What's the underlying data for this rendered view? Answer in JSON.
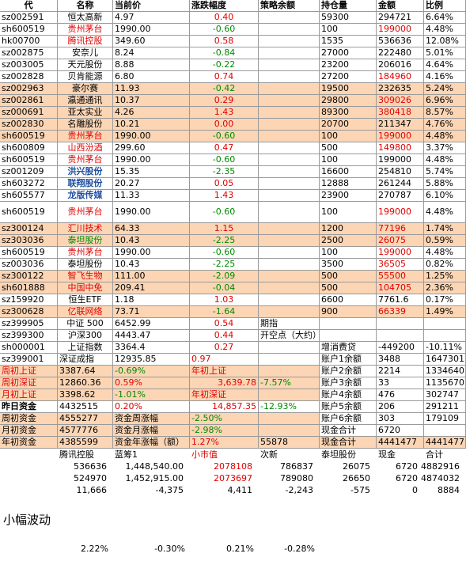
{
  "header": [
    "代",
    "名称",
    "当前价",
    "涨跌幅度",
    "策略余额",
    "持仓量",
    "金额",
    "比例"
  ],
  "rows": [
    [
      "sz002591",
      "恒太高新",
      "4.97",
      "0.40",
      null,
      "59300",
      "294721",
      "6.64%"
    ],
    [
      "sh600519",
      "贵州茅台",
      "1990.00",
      "-0.60",
      null,
      "100",
      "199000",
      "4.48%"
    ],
    [
      "hk00700",
      "腾讯控股",
      "349.60",
      "0.58",
      null,
      "1535",
      "536636",
      "12.08%"
    ],
    [
      "sz002875",
      "安奈儿",
      "8.24",
      "-0.84",
      null,
      "27000",
      "222480",
      "5.01%"
    ],
    [
      "sz003005",
      "天元股份",
      "8.88",
      "-0.22",
      null,
      "23200",
      "206016",
      "4.64%"
    ],
    [
      "sz002828",
      "贝肯能源",
      "6.80",
      "0.74",
      null,
      "27200",
      "184960",
      "4.16%"
    ],
    [
      "sz002963",
      "豪尔赛",
      "11.93",
      "-0.42",
      null,
      "19500",
      "232635",
      "5.24%"
    ],
    [
      "sz002861",
      "瀛通通讯",
      "10.37",
      "0.29",
      null,
      "29800",
      "309026",
      "6.96%"
    ],
    [
      "sz000691",
      "亚太实业",
      "4.26",
      "1.43",
      null,
      "89300",
      "380418",
      "8.57%"
    ],
    [
      "sz002830",
      "名雕股份",
      "10.21",
      "0.00",
      null,
      "20700",
      "211347",
      "4.76%"
    ],
    [
      "sh600519",
      "贵州茅台",
      "1990.00",
      "-0.60",
      null,
      "100",
      "199000",
      "4.48%"
    ],
    [
      "sh600809",
      "山西汾酒",
      "299.60",
      "0.47",
      null,
      "500",
      "149800",
      "3.37%"
    ],
    [
      "sh600519",
      "贵州茅台",
      "1990.00",
      "-0.60",
      null,
      "100",
      "199000",
      "4.48%"
    ],
    [
      "sz001209",
      "洪兴股份",
      "15.35",
      "-2.35",
      null,
      "16600",
      "254810",
      "5.74%"
    ],
    [
      "sh603272",
      "联翔股份",
      "20.27",
      "0.05",
      null,
      "12888",
      "261244",
      "5.88%"
    ],
    [
      "sh605577",
      "龙版传媒",
      "11.33",
      "1.43",
      null,
      "23900",
      "270787",
      "6.10%"
    ],
    [
      "sh600519",
      "贵州茅台",
      "1990.00",
      "-0.60",
      null,
      "100",
      "199000",
      "4.48%"
    ],
    [
      "sz300124",
      "汇川技术",
      "64.33",
      "1.15",
      null,
      "1200",
      "77196",
      "1.74%"
    ],
    [
      "sz303036",
      "泰坦股份",
      "10.43",
      "-2.25",
      null,
      "2500",
      "26075",
      "0.59%"
    ],
    [
      "sh600519",
      "贵州茅台",
      "1990.00",
      "-0.60",
      null,
      "100",
      "199000",
      "4.48%"
    ],
    [
      "sz003036",
      "泰坦股份",
      "10.43",
      "-2.25",
      null,
      "3500",
      "36505",
      "0.82%"
    ],
    [
      "sz300122",
      "智飞生物",
      "111.00",
      "-2.09",
      null,
      "500",
      "55500",
      "1.25%"
    ],
    [
      "sh601888",
      "中国中免",
      "209.41",
      "-0.04",
      null,
      "500",
      "104705",
      "2.36%"
    ],
    [
      "sz159920",
      "恒生ETF",
      "1.18",
      "1.03",
      null,
      "6600",
      "7761.6",
      "0.17%"
    ],
    [
      "sz300628",
      "亿联网络",
      "73.71",
      "-1.64",
      null,
      "900",
      "66339",
      "1.49%"
    ],
    [
      "sz399905",
      "中证 500",
      "6452.99",
      "0.54",
      "期指",
      null,
      null,
      null
    ],
    [
      "sz399300",
      "沪深300",
      "4443.47",
      "0.44",
      "开空点（大约）",
      null,
      null,
      null
    ],
    [
      "sh000001",
      "上证指数",
      "3364.4",
      "0.27",
      null,
      "增消费贷",
      "-449200",
      "-10.11%"
    ],
    [
      "sz399001",
      "深证成指",
      "12935.85",
      "0.97",
      null,
      "账户1余额",
      "3488",
      "1647301"
    ],
    [
      "周初上证",
      "3387.64",
      "-0.69%",
      "年初上证",
      null,
      "账户2余额",
      "2214",
      "1334640"
    ],
    [
      "周初深证",
      "12860.36",
      "0.59%",
      "3,639.78",
      "-7.57%",
      "账户3余额",
      "33",
      "1135670"
    ],
    [
      "月初上证",
      "3398.62",
      "-1.01%",
      "年初深证",
      null,
      "账户4余额",
      "476",
      "302747"
    ],
    [
      "昨日资金",
      "4432515",
      "0.20%",
      "14,857.35",
      "-12.93%",
      "账户5余额",
      "206",
      "291211"
    ],
    [
      "周初资金",
      "4555277",
      "资金周涨幅",
      "-2.50%",
      null,
      "账户6余额",
      "303",
      "179109"
    ],
    [
      "月初资金",
      "4577776",
      "资金月涨幅",
      "-2.98%",
      null,
      "现金合计",
      "6720",
      null
    ],
    [
      "年初资金",
      "4385599",
      "资金年涨幅（额）",
      "1.27%",
      "55878",
      "现金合计",
      "4441477",
      "4441477"
    ]
  ],
  "summary": {
    "labels": [
      "腾讯控股",
      "蓝筹1",
      "小市值",
      "次新",
      "泰坦股份",
      "现金",
      "合计"
    ],
    "rows": [
      [
        "536636",
        "1,448,540.00",
        "2078108",
        "786837",
        "26075",
        "6720",
        "4882916"
      ],
      [
        "524970",
        "1,452,915.00",
        "2073697",
        "789080",
        "26650",
        "6720",
        "4874032"
      ],
      [
        "11,666",
        "-4,375",
        "4,411",
        "-2,243",
        "-575",
        "0",
        "8884"
      ]
    ]
  },
  "note": "小幅波动",
  "percent_row": [
    "2.22%",
    "-0.30%",
    "0.21%",
    "-0.28%"
  ]
}
